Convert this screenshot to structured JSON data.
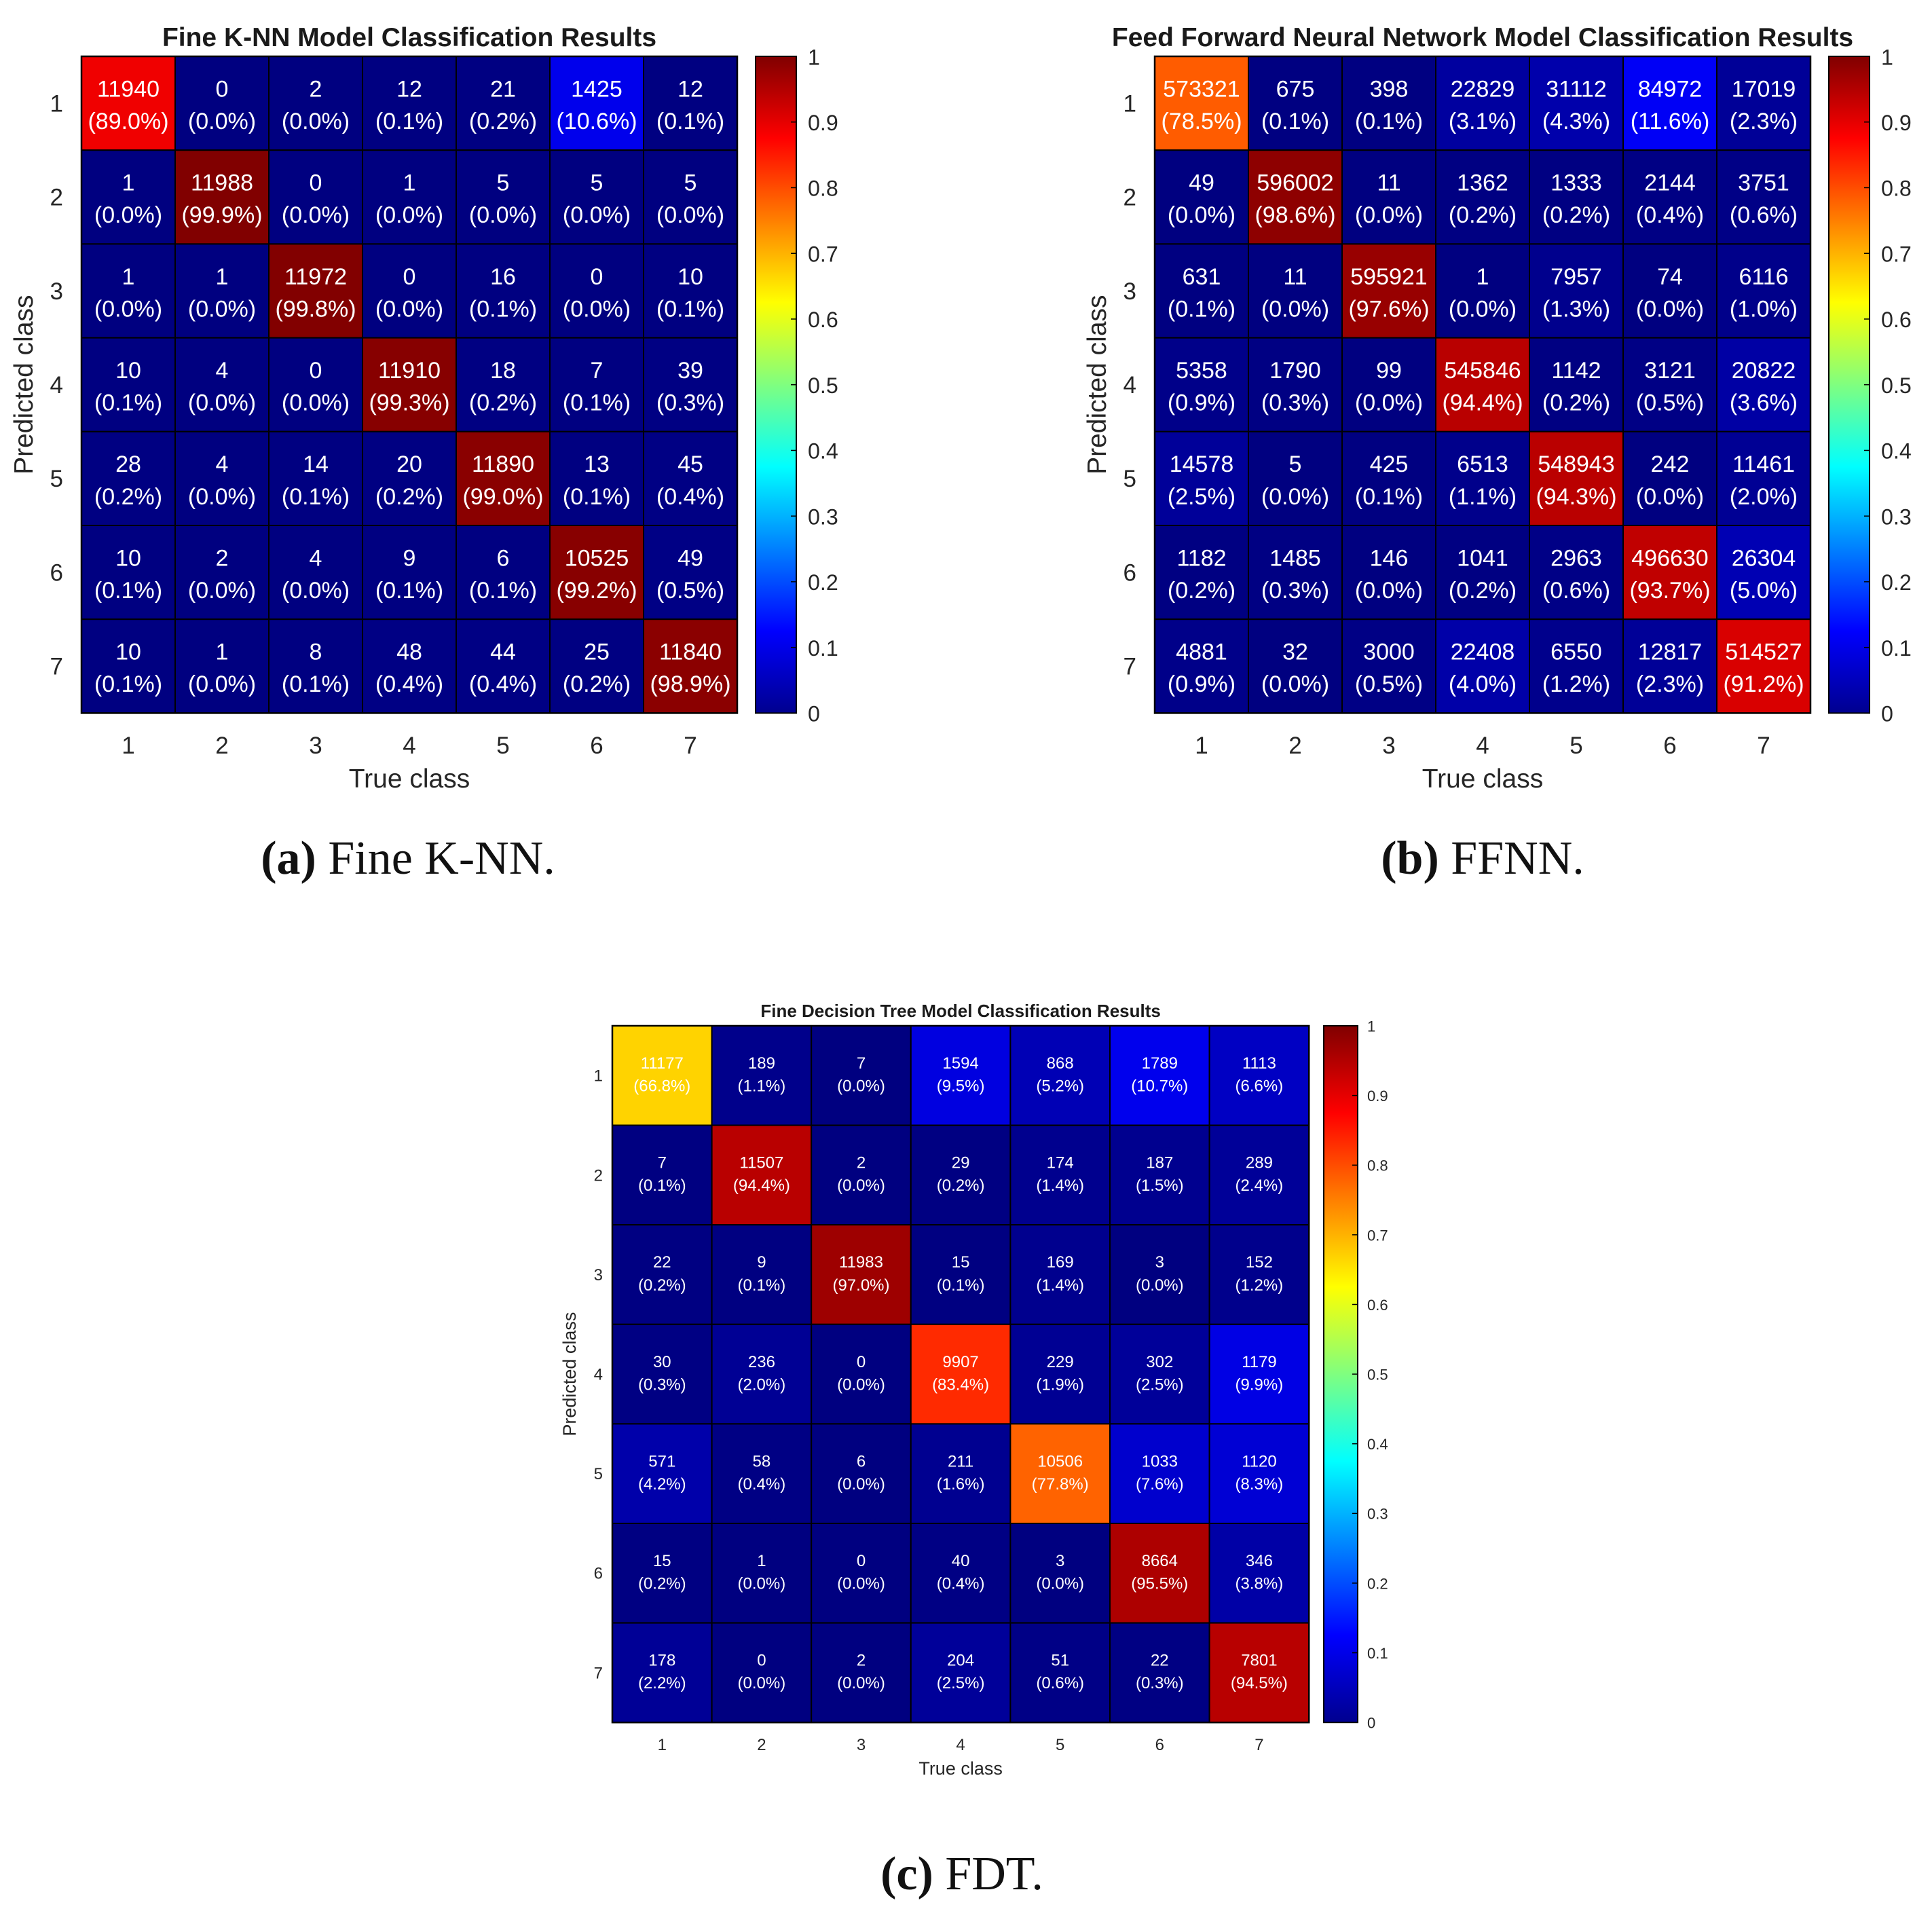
{
  "chart_data": [
    {
      "type": "heatmap",
      "title": "Fine K-NN Model Classification Results",
      "xlabel": "True class",
      "ylabel": "Predicted class",
      "categories": [
        "1",
        "2",
        "3",
        "4",
        "5",
        "6",
        "7"
      ],
      "colorbar": {
        "min": 0,
        "max": 1,
        "colormap": "jet",
        "ticks": [
          "0",
          "0.1",
          "0.2",
          "0.3",
          "0.4",
          "0.5",
          "0.6",
          "0.7",
          "0.8",
          "0.9",
          "1"
        ]
      },
      "caption": {
        "prefix": "(a)",
        "text": "Fine K-NN."
      },
      "counts": [
        [
          "11940",
          "0",
          "2",
          "12",
          "21",
          "1425",
          "12"
        ],
        [
          "1",
          "11988",
          "0",
          "1",
          "5",
          "5",
          "5"
        ],
        [
          "1",
          "1",
          "11972",
          "0",
          "16",
          "0",
          "10"
        ],
        [
          "10",
          "4",
          "0",
          "11910",
          "18",
          "7",
          "39"
        ],
        [
          "28",
          "4",
          "14",
          "20",
          "11890",
          "13",
          "45"
        ],
        [
          "10",
          "2",
          "4",
          "9",
          "6",
          "10525",
          "49"
        ],
        [
          "10",
          "1",
          "8",
          "48",
          "44",
          "25",
          "11840"
        ]
      ],
      "percents": [
        [
          "(89.0%)",
          "(0.0%)",
          "(0.0%)",
          "(0.1%)",
          "(0.2%)",
          "(10.6%)",
          "(0.1%)"
        ],
        [
          "(0.0%)",
          "(99.9%)",
          "(0.0%)",
          "(0.0%)",
          "(0.0%)",
          "(0.0%)",
          "(0.0%)"
        ],
        [
          "(0.0%)",
          "(0.0%)",
          "(99.8%)",
          "(0.0%)",
          "(0.1%)",
          "(0.0%)",
          "(0.1%)"
        ],
        [
          "(0.1%)",
          "(0.0%)",
          "(0.0%)",
          "(99.3%)",
          "(0.2%)",
          "(0.1%)",
          "(0.3%)"
        ],
        [
          "(0.2%)",
          "(0.0%)",
          "(0.1%)",
          "(0.2%)",
          "(99.0%)",
          "(0.1%)",
          "(0.4%)"
        ],
        [
          "(0.1%)",
          "(0.0%)",
          "(0.0%)",
          "(0.1%)",
          "(0.1%)",
          "(99.2%)",
          "(0.5%)"
        ],
        [
          "(0.1%)",
          "(0.0%)",
          "(0.1%)",
          "(0.4%)",
          "(0.4%)",
          "(0.2%)",
          "(98.9%)"
        ]
      ]
    },
    {
      "type": "heatmap",
      "title": "Feed Forward Neural Network Model Classification Results",
      "xlabel": "True class",
      "ylabel": "Predicted class",
      "categories": [
        "1",
        "2",
        "3",
        "4",
        "5",
        "6",
        "7"
      ],
      "colorbar": {
        "min": 0,
        "max": 1,
        "colormap": "jet",
        "ticks": [
          "0",
          "0.1",
          "0.2",
          "0.3",
          "0.4",
          "0.5",
          "0.6",
          "0.7",
          "0.8",
          "0.9",
          "1"
        ]
      },
      "caption": {
        "prefix": "(b)",
        "text": "FFNN."
      },
      "counts": [
        [
          "573321",
          "675",
          "398",
          "22829",
          "31112",
          "84972",
          "17019"
        ],
        [
          "49",
          "596002",
          "11",
          "1362",
          "1333",
          "2144",
          "3751"
        ],
        [
          "631",
          "11",
          "595921",
          "1",
          "7957",
          "74",
          "6116"
        ],
        [
          "5358",
          "1790",
          "99",
          "545846",
          "1142",
          "3121",
          "20822"
        ],
        [
          "14578",
          "5",
          "425",
          "6513",
          "548943",
          "242",
          "11461"
        ],
        [
          "1182",
          "1485",
          "146",
          "1041",
          "2963",
          "496630",
          "26304"
        ],
        [
          "4881",
          "32",
          "3000",
          "22408",
          "6550",
          "12817",
          "514527"
        ]
      ],
      "percents": [
        [
          "(78.5%)",
          "(0.1%)",
          "(0.1%)",
          "(3.1%)",
          "(4.3%)",
          "(11.6%)",
          "(2.3%)"
        ],
        [
          "(0.0%)",
          "(98.6%)",
          "(0.0%)",
          "(0.2%)",
          "(0.2%)",
          "(0.4%)",
          "(0.6%)"
        ],
        [
          "(0.1%)",
          "(0.0%)",
          "(97.6%)",
          "(0.0%)",
          "(1.3%)",
          "(0.0%)",
          "(1.0%)"
        ],
        [
          "(0.9%)",
          "(0.3%)",
          "(0.0%)",
          "(94.4%)",
          "(0.2%)",
          "(0.5%)",
          "(3.6%)"
        ],
        [
          "(2.5%)",
          "(0.0%)",
          "(0.1%)",
          "(1.1%)",
          "(94.3%)",
          "(0.0%)",
          "(2.0%)"
        ],
        [
          "(0.2%)",
          "(0.3%)",
          "(0.0%)",
          "(0.2%)",
          "(0.6%)",
          "(93.7%)",
          "(5.0%)"
        ],
        [
          "(0.9%)",
          "(0.0%)",
          "(0.5%)",
          "(4.0%)",
          "(1.2%)",
          "(2.3%)",
          "(91.2%)"
        ]
      ]
    },
    {
      "type": "heatmap",
      "title": "Fine Decision Tree Model Classification Results",
      "xlabel": "True class",
      "ylabel": "Predicted class",
      "categories": [
        "1",
        "2",
        "3",
        "4",
        "5",
        "6",
        "7"
      ],
      "colorbar": {
        "min": 0,
        "max": 1,
        "colormap": "jet",
        "ticks": [
          "0",
          "0.1",
          "0.2",
          "0.3",
          "0.4",
          "0.5",
          "0.6",
          "0.7",
          "0.8",
          "0.9",
          "1"
        ]
      },
      "caption": {
        "prefix": "(c)",
        "text": "FDT."
      },
      "counts": [
        [
          "11177",
          "189",
          "7",
          "1594",
          "868",
          "1789",
          "1113"
        ],
        [
          "7",
          "11507",
          "2",
          "29",
          "174",
          "187",
          "289"
        ],
        [
          "22",
          "9",
          "11983",
          "15",
          "169",
          "3",
          "152"
        ],
        [
          "30",
          "236",
          "0",
          "9907",
          "229",
          "302",
          "1179"
        ],
        [
          "571",
          "58",
          "6",
          "211",
          "10506",
          "1033",
          "1120"
        ],
        [
          "15",
          "1",
          "0",
          "40",
          "3",
          "8664",
          "346"
        ],
        [
          "178",
          "0",
          "2",
          "204",
          "51",
          "22",
          "7801"
        ]
      ],
      "percents": [
        [
          "(66.8%)",
          "(1.1%)",
          "(0.0%)",
          "(9.5%)",
          "(5.2%)",
          "(10.7%)",
          "(6.6%)"
        ],
        [
          "(0.1%)",
          "(94.4%)",
          "(0.0%)",
          "(0.2%)",
          "(1.4%)",
          "(1.5%)",
          "(2.4%)"
        ],
        [
          "(0.2%)",
          "(0.1%)",
          "(97.0%)",
          "(0.1%)",
          "(1.4%)",
          "(0.0%)",
          "(1.2%)"
        ],
        [
          "(0.3%)",
          "(2.0%)",
          "(0.0%)",
          "(83.4%)",
          "(1.9%)",
          "(2.5%)",
          "(9.9%)"
        ],
        [
          "(4.2%)",
          "(0.4%)",
          "(0.0%)",
          "(1.6%)",
          "(77.8%)",
          "(7.6%)",
          "(8.3%)"
        ],
        [
          "(0.2%)",
          "(0.0%)",
          "(0.0%)",
          "(0.4%)",
          "(0.0%)",
          "(95.5%)",
          "(3.8%)"
        ],
        [
          "(2.2%)",
          "(0.0%)",
          "(0.0%)",
          "(2.5%)",
          "(0.6%)",
          "(0.3%)",
          "(94.5%)"
        ]
      ]
    }
  ]
}
